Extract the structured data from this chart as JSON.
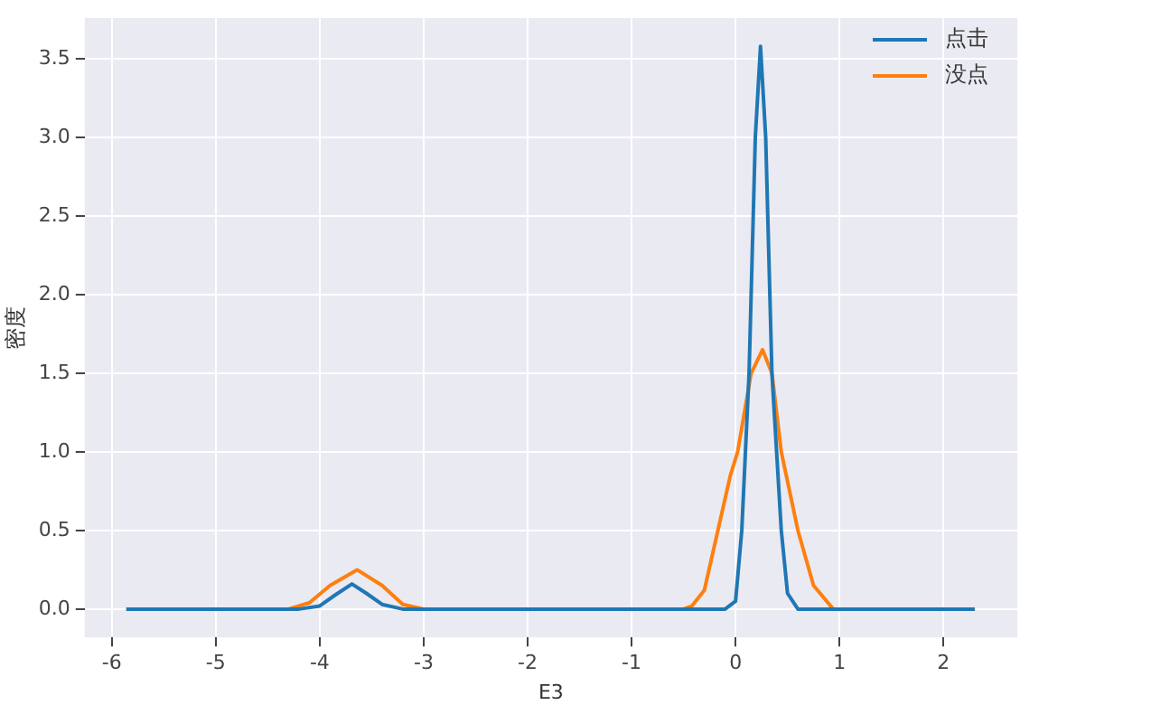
{
  "chart_data": {
    "type": "line",
    "xlabel": "E3",
    "ylabel": "密度",
    "xlim": [
      -6.26,
      2.71
    ],
    "ylim": [
      -0.18,
      3.76
    ],
    "xticks": [
      -6,
      -5,
      -4,
      -3,
      -2,
      -1,
      0,
      1,
      2
    ],
    "yticks": [
      {
        "value": 0,
        "label": "0.0"
      },
      {
        "value": 0.5,
        "label": "0.5"
      },
      {
        "value": 1,
        "label": "1.0"
      },
      {
        "value": 1.5,
        "label": "1.5"
      },
      {
        "value": 2,
        "label": "2.0"
      },
      {
        "value": 2.5,
        "label": "2.5"
      },
      {
        "value": 3,
        "label": "3.0"
      },
      {
        "value": 3.5,
        "label": "3.5"
      }
    ],
    "grid": true,
    "legend": "top right",
    "marker": "none",
    "line_style": "solid",
    "series": [
      {
        "name": "点击",
        "color": "#1f77b4",
        "x": [
          -5.86,
          -4.2,
          -4.0,
          -3.85,
          -3.69,
          -3.55,
          -3.4,
          -3.2,
          -0.1,
          0.0,
          0.06,
          0.13,
          0.19,
          0.24,
          0.29,
          0.35,
          0.44,
          0.5,
          0.6,
          2.3
        ],
        "values": [
          0,
          0,
          0.02,
          0.09,
          0.16,
          0.1,
          0.03,
          0,
          0,
          0.05,
          0.5,
          1.5,
          3.0,
          3.58,
          3.0,
          1.5,
          0.5,
          0.1,
          0,
          0
        ]
      },
      {
        "name": "没点",
        "color": "#ff7f0e",
        "x": [
          -5.86,
          -4.3,
          -4.1,
          -3.9,
          -3.64,
          -3.4,
          -3.2,
          -3.0,
          -0.5,
          -0.42,
          -0.3,
          -0.17,
          -0.05,
          0.02,
          0.15,
          0.26,
          0.35,
          0.44,
          0.6,
          0.75,
          0.94,
          2.3
        ],
        "values": [
          0,
          0,
          0.04,
          0.15,
          0.25,
          0.15,
          0.03,
          0,
          0,
          0.02,
          0.12,
          0.5,
          0.85,
          1.0,
          1.5,
          1.65,
          1.5,
          1.0,
          0.5,
          0.15,
          0,
          0
        ]
      }
    ]
  }
}
